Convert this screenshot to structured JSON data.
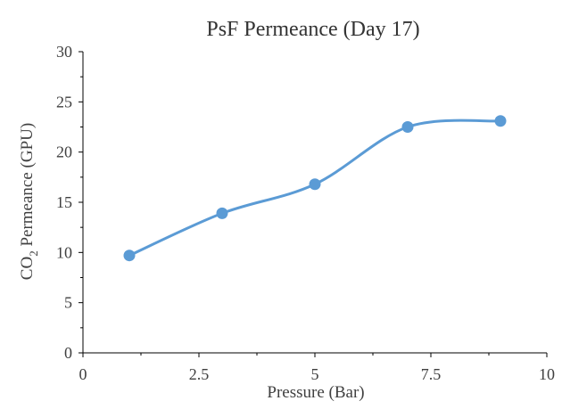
{
  "chart_data": {
    "type": "scatter",
    "title": "PsF Permeance (Day 17)",
    "xlabel": "Pressure (Bar)",
    "ylabel": {
      "prefix": "CO",
      "subscript": "2",
      "suffix": " Permeance (GPU)"
    },
    "xlim": [
      0,
      10
    ],
    "ylim": [
      0,
      30
    ],
    "x_ticks": [
      "0",
      "2.5",
      "5",
      "7.5",
      "10"
    ],
    "y_ticks": [
      "0",
      "5",
      "10",
      "15",
      "20",
      "25",
      "30"
    ],
    "grid": false,
    "smooth_line": true,
    "series": [
      {
        "color": "#5B9BD5",
        "x": [
          1,
          3,
          5,
          7,
          9
        ],
        "y": [
          9.7,
          13.9,
          16.8,
          22.5,
          23.1
        ]
      }
    ]
  }
}
